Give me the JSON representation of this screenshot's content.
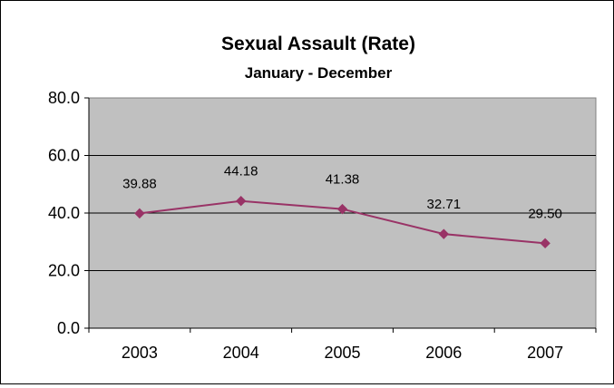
{
  "chart_data": {
    "type": "line",
    "title": "Sexual Assault (Rate)",
    "subtitle": "January - December",
    "xlabel": "",
    "ylabel": "",
    "categories": [
      "2003",
      "2004",
      "2005",
      "2006",
      "2007"
    ],
    "series": [
      {
        "values": [
          39.88,
          44.18,
          41.38,
          32.71,
          29.5
        ],
        "labels": [
          "39.88",
          "44.18",
          "41.38",
          "32.71",
          "29.50"
        ],
        "color": "#993366"
      }
    ],
    "ylim": [
      0,
      80
    ],
    "yticks": [
      "0.0",
      "20.0",
      "40.0",
      "60.0",
      "80.0"
    ],
    "grid": true,
    "legend": "none",
    "plot_background": "#c0c0c0"
  }
}
